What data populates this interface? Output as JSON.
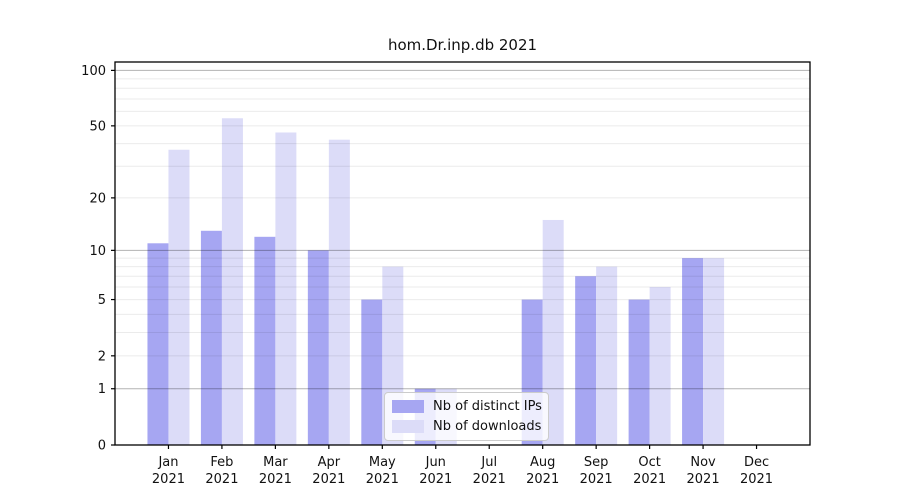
{
  "title": "hom.Dr.inp.db 2021",
  "chart_data": {
    "type": "bar",
    "title": "hom.Dr.inp.db 2021",
    "categories": [
      "Jan",
      "Feb",
      "Mar",
      "Apr",
      "May",
      "Jun",
      "Jul",
      "Aug",
      "Sep",
      "Oct",
      "Nov",
      "Dec"
    ],
    "category_year_label": "2021",
    "series": [
      {
        "name": "Nb of distinct IPs",
        "color": "#a6a6f2",
        "values": [
          11,
          13,
          12,
          10,
          5,
          1,
          0,
          5,
          7,
          5,
          9,
          0
        ]
      },
      {
        "name": "Nb of downloads",
        "color": "#dcdcf8",
        "values": [
          37,
          55,
          46,
          42,
          8,
          1,
          0,
          15,
          8,
          6,
          9,
          0
        ]
      }
    ],
    "xlabel": "",
    "ylabel": "",
    "y_axis": {
      "scale": "log1p",
      "tick_values": [
        0,
        1,
        2,
        5,
        10,
        20,
        50,
        100
      ],
      "tick_labels": [
        "0",
        "1",
        "2",
        "5",
        "10",
        "20",
        "50",
        "100"
      ],
      "major_gridlines": [
        1,
        10,
        100
      ],
      "minor_gridlines": [
        2,
        3,
        4,
        5,
        6,
        7,
        8,
        9,
        20,
        30,
        40,
        50,
        60,
        70,
        80,
        90
      ],
      "ylim": [
        0,
        111
      ]
    },
    "grid": true,
    "legend_position": "bottom-center",
    "colors": {
      "spine": "#000000",
      "tick_label": "#111111",
      "major_grid": "rgba(0,0,0,0.30)",
      "minor_grid": "rgba(0,0,0,0.08)"
    }
  }
}
